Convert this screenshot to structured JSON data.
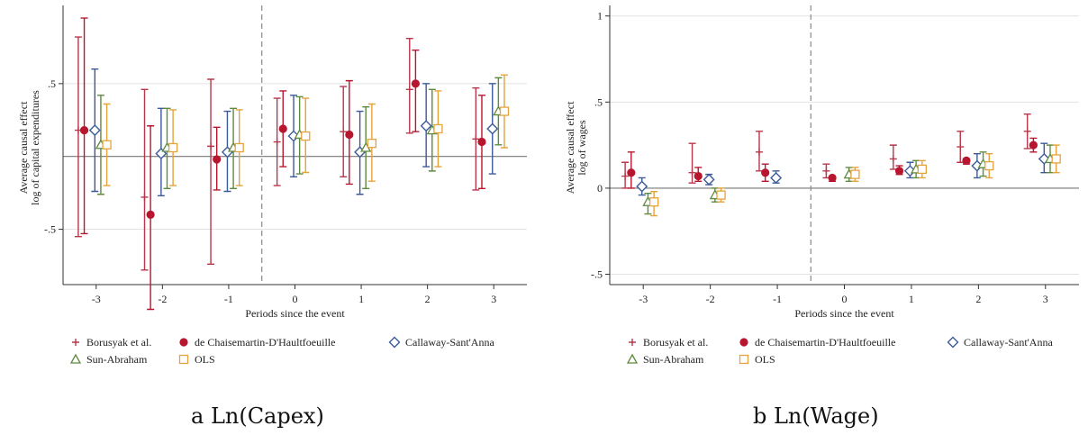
{
  "chart_data": [
    {
      "type": "scatter",
      "caption": "a Ln(Capex)",
      "xlabel": "Periods since the event",
      "ylabel": [
        "Average causal effect",
        "log of capital expenditures"
      ],
      "x_ticks": [
        -3,
        -2,
        -1,
        0,
        1,
        2,
        3
      ],
      "y_ticks": [
        {
          "value": 0.5,
          "label": ".5"
        },
        {
          "value": -0.5,
          "label": "-.5"
        }
      ],
      "ylim": [
        -0.88,
        1.0
      ],
      "zero_line": 0,
      "event_line_x": -0.5,
      "series": [
        {
          "name": "Borusyak et al.",
          "marker": "plus",
          "color": "#b8364a",
          "offset": -0.27,
          "points": [
            {
              "x": -3,
              "y": 0.18,
              "lo": -0.55,
              "hi": 0.82
            },
            {
              "x": -2,
              "y": -0.28,
              "lo": -0.78,
              "hi": 0.46
            },
            {
              "x": -1,
              "y": 0.07,
              "lo": -0.74,
              "hi": 0.53
            },
            {
              "x": 0,
              "y": 0.1,
              "lo": -0.2,
              "hi": 0.4
            },
            {
              "x": 1,
              "y": 0.17,
              "lo": -0.14,
              "hi": 0.48
            },
            {
              "x": 2,
              "y": 0.46,
              "lo": 0.16,
              "hi": 0.81
            },
            {
              "x": 3,
              "y": 0.12,
              "lo": -0.23,
              "hi": 0.47
            }
          ]
        },
        {
          "name": "de Chaisemartin-D'Haultfoeuille",
          "marker": "dot",
          "color": "#b8162f",
          "offset": -0.18,
          "points": [
            {
              "x": -3,
              "y": 0.18,
              "lo": -0.53,
              "hi": 0.95
            },
            {
              "x": -2,
              "y": -0.4,
              "lo": -1.05,
              "hi": 0.21
            },
            {
              "x": -1,
              "y": -0.02,
              "lo": -0.23,
              "hi": 0.2
            },
            {
              "x": 0,
              "y": 0.19,
              "lo": -0.07,
              "hi": 0.45
            },
            {
              "x": 1,
              "y": 0.15,
              "lo": -0.19,
              "hi": 0.52
            },
            {
              "x": 2,
              "y": 0.5,
              "lo": 0.17,
              "hi": 0.73
            },
            {
              "x": 3,
              "y": 0.1,
              "lo": -0.22,
              "hi": 0.42
            }
          ]
        },
        {
          "name": "Callaway-Sant'Anna",
          "marker": "diamond",
          "color": "#3c5a9a",
          "offset": -0.02,
          "points": [
            {
              "x": -3,
              "y": 0.18,
              "lo": -0.24,
              "hi": 0.6
            },
            {
              "x": -2,
              "y": 0.02,
              "lo": -0.27,
              "hi": 0.33
            },
            {
              "x": -1,
              "y": 0.03,
              "lo": -0.24,
              "hi": 0.31
            },
            {
              "x": 0,
              "y": 0.14,
              "lo": -0.14,
              "hi": 0.42
            },
            {
              "x": 1,
              "y": 0.03,
              "lo": -0.26,
              "hi": 0.31
            },
            {
              "x": 2,
              "y": 0.21,
              "lo": -0.07,
              "hi": 0.5
            },
            {
              "x": 3,
              "y": 0.19,
              "lo": -0.12,
              "hi": 0.5
            }
          ]
        },
        {
          "name": "Sun-Abraham",
          "marker": "triangle",
          "color": "#5e8a3e",
          "offset": 0.07,
          "points": [
            {
              "x": -3,
              "y": 0.08,
              "lo": -0.26,
              "hi": 0.42
            },
            {
              "x": -2,
              "y": 0.06,
              "lo": -0.22,
              "hi": 0.33
            },
            {
              "x": -1,
              "y": 0.06,
              "lo": -0.22,
              "hi": 0.33
            },
            {
              "x": 0,
              "y": 0.15,
              "lo": -0.12,
              "hi": 0.41
            },
            {
              "x": 1,
              "y": 0.06,
              "lo": -0.22,
              "hi": 0.34
            },
            {
              "x": 2,
              "y": 0.18,
              "lo": -0.1,
              "hi": 0.46
            },
            {
              "x": 3,
              "y": 0.31,
              "lo": 0.08,
              "hi": 0.54
            }
          ]
        },
        {
          "name": "OLS",
          "marker": "square",
          "color": "#e6a23c",
          "offset": 0.16,
          "points": [
            {
              "x": -3,
              "y": 0.08,
              "lo": -0.2,
              "hi": 0.36
            },
            {
              "x": -2,
              "y": 0.06,
              "lo": -0.2,
              "hi": 0.32
            },
            {
              "x": -1,
              "y": 0.06,
              "lo": -0.2,
              "hi": 0.32
            },
            {
              "x": 0,
              "y": 0.14,
              "lo": -0.11,
              "hi": 0.4
            },
            {
              "x": 1,
              "y": 0.09,
              "lo": -0.17,
              "hi": 0.36
            },
            {
              "x": 2,
              "y": 0.19,
              "lo": -0.07,
              "hi": 0.45
            },
            {
              "x": 3,
              "y": 0.31,
              "lo": 0.06,
              "hi": 0.56
            }
          ]
        }
      ],
      "legend": {
        "placement": "bottom",
        "entries": [
          "Borusyak et al.",
          "de Chaisemartin-D'Haultfoeuille",
          "Callaway-Sant'Anna",
          "Sun-Abraham",
          "OLS"
        ]
      }
    },
    {
      "type": "scatter",
      "caption": "b Ln(Wage)",
      "xlabel": "Periods since the event",
      "ylabel": [
        "Average causal effect",
        "log of wages"
      ],
      "x_ticks": [
        -3,
        -2,
        -1,
        0,
        1,
        2,
        3
      ],
      "y_ticks": [
        {
          "value": 1,
          "label": "1"
        },
        {
          "value": 0.5,
          "label": ".5"
        },
        {
          "value": 0,
          "label": "0"
        },
        {
          "value": -0.5,
          "label": "-.5"
        }
      ],
      "ylim": [
        -0.56,
        1.03
      ],
      "zero_line": 0,
      "event_line_x": -0.5,
      "series": [
        {
          "name": "Borusyak et al.",
          "marker": "plus",
          "color": "#b8364a",
          "offset": -0.27,
          "points": [
            {
              "x": -3,
              "y": 0.07,
              "lo": 0.0,
              "hi": 0.15
            },
            {
              "x": -2,
              "y": 0.09,
              "lo": 0.03,
              "hi": 0.26
            },
            {
              "x": -1,
              "y": 0.21,
              "lo": 0.1,
              "hi": 0.33
            },
            {
              "x": 0,
              "y": 0.1,
              "lo": 0.06,
              "hi": 0.14
            },
            {
              "x": 1,
              "y": 0.17,
              "lo": 0.11,
              "hi": 0.25
            },
            {
              "x": 2,
              "y": 0.24,
              "lo": 0.15,
              "hi": 0.33
            },
            {
              "x": 3,
              "y": 0.33,
              "lo": 0.23,
              "hi": 0.43
            }
          ]
        },
        {
          "name": "de Chaisemartin-D'Haultfoeuille",
          "marker": "dot",
          "color": "#b8162f",
          "offset": -0.18,
          "points": [
            {
              "x": -3,
              "y": 0.09,
              "lo": 0.0,
              "hi": 0.21
            },
            {
              "x": -2,
              "y": 0.07,
              "lo": 0.04,
              "hi": 0.12
            },
            {
              "x": -1,
              "y": 0.09,
              "lo": 0.04,
              "hi": 0.14
            },
            {
              "x": 0,
              "y": 0.06,
              "lo": 0.04,
              "hi": 0.07
            },
            {
              "x": 1,
              "y": 0.1,
              "lo": 0.08,
              "hi": 0.13
            },
            {
              "x": 2,
              "y": 0.16,
              "lo": 0.14,
              "hi": 0.17
            },
            {
              "x": 3,
              "y": 0.25,
              "lo": 0.21,
              "hi": 0.29
            }
          ]
        },
        {
          "name": "Callaway-Sant'Anna",
          "marker": "diamond",
          "color": "#3c5a9a",
          "offset": -0.02,
          "points": [
            {
              "x": -3,
              "y": 0.01,
              "lo": -0.04,
              "hi": 0.06
            },
            {
              "x": -2,
              "y": 0.05,
              "lo": 0.02,
              "hi": 0.08
            },
            {
              "x": -1,
              "y": 0.06,
              "lo": 0.03,
              "hi": 0.1
            },
            {
              "x": 0,
              "y": null,
              "lo": null,
              "hi": null
            },
            {
              "x": 1,
              "y": 0.1,
              "lo": 0.06,
              "hi": 0.15
            },
            {
              "x": 2,
              "y": 0.13,
              "lo": 0.06,
              "hi": 0.2
            },
            {
              "x": 3,
              "y": 0.17,
              "lo": 0.09,
              "hi": 0.26
            }
          ]
        },
        {
          "name": "Sun-Abraham",
          "marker": "triangle",
          "color": "#5e8a3e",
          "offset": 0.07,
          "points": [
            {
              "x": -3,
              "y": -0.08,
              "lo": -0.15,
              "hi": -0.03
            },
            {
              "x": -2,
              "y": -0.04,
              "lo": -0.08,
              "hi": 0.0
            },
            {
              "x": -1,
              "y": null,
              "lo": null,
              "hi": null
            },
            {
              "x": 0,
              "y": 0.08,
              "lo": 0.04,
              "hi": 0.12
            },
            {
              "x": 1,
              "y": 0.11,
              "lo": 0.06,
              "hi": 0.16
            },
            {
              "x": 2,
              "y": 0.14,
              "lo": 0.07,
              "hi": 0.21
            },
            {
              "x": 3,
              "y": 0.17,
              "lo": 0.09,
              "hi": 0.25
            }
          ]
        },
        {
          "name": "OLS",
          "marker": "square",
          "color": "#e6a23c",
          "offset": 0.16,
          "points": [
            {
              "x": -3,
              "y": -0.08,
              "lo": -0.16,
              "hi": -0.02
            },
            {
              "x": -2,
              "y": -0.04,
              "lo": -0.08,
              "hi": 0.0
            },
            {
              "x": -1,
              "y": null,
              "lo": null,
              "hi": null
            },
            {
              "x": 0,
              "y": 0.08,
              "lo": 0.04,
              "hi": 0.12
            },
            {
              "x": 1,
              "y": 0.11,
              "lo": 0.06,
              "hi": 0.16
            },
            {
              "x": 2,
              "y": 0.13,
              "lo": 0.06,
              "hi": 0.2
            },
            {
              "x": 3,
              "y": 0.17,
              "lo": 0.09,
              "hi": 0.25
            }
          ]
        }
      ],
      "legend": {
        "placement": "bottom",
        "entries": [
          "Borusyak et al.",
          "de Chaisemartin-D'Haultfoeuille",
          "Callaway-Sant'Anna",
          "Sun-Abraham",
          "OLS"
        ]
      }
    }
  ]
}
